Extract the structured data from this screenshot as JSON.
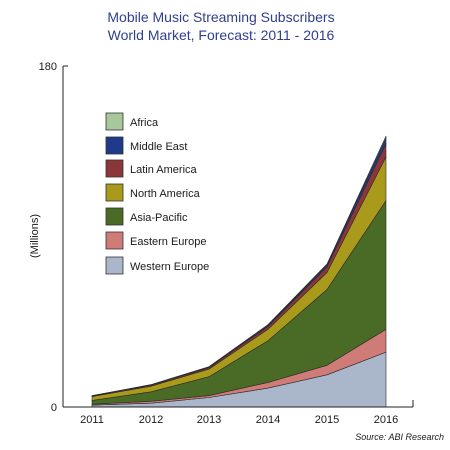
{
  "chart_data": {
    "type": "area",
    "stacked": true,
    "title_lines": [
      "Mobile Music Streaming Subscribers",
      "World Market, Forecast: 2011 - 2016"
    ],
    "ylabel": "(Millions)",
    "xlabel": "",
    "categories": [
      "2011",
      "2012",
      "2013",
      "2014",
      "2015",
      "2016"
    ],
    "ylim": [
      0,
      180
    ],
    "yticks": [
      "0",
      "180"
    ],
    "legend_placement": "upper-left",
    "series": [
      {
        "name": "Western Europe",
        "color": "#aab6c9",
        "values": [
          1,
          2,
          5,
          10,
          17,
          29
        ]
      },
      {
        "name": "Eastern Europe",
        "color": "#cf7b77",
        "values": [
          0.5,
          1,
          1,
          3,
          5,
          12
        ]
      },
      {
        "name": "Asia-Pacific",
        "color": "#4a6b26",
        "values": [
          2,
          5,
          10,
          22,
          40,
          68
        ]
      },
      {
        "name": "North America",
        "color": "#aa9a1c",
        "values": [
          2,
          3,
          4,
          6,
          9,
          23
        ]
      },
      {
        "name": "Latin America",
        "color": "#8b3638",
        "values": [
          0.3,
          0.5,
          0.8,
          1.5,
          3,
          7
        ]
      },
      {
        "name": "Middle East",
        "color": "#1f3a8a",
        "values": [
          0.1,
          0.2,
          0.3,
          0.6,
          1,
          3
        ]
      },
      {
        "name": "Africa",
        "color": "#a8c79a",
        "values": [
          0.1,
          0.1,
          0.2,
          0.4,
          0.5,
          1
        ]
      }
    ],
    "legend_order": [
      "Africa",
      "Middle East",
      "Latin America",
      "North America",
      "Asia-Pacific",
      "Eastern Europe",
      "Western Europe"
    ],
    "source": "Source: ABI Research"
  }
}
